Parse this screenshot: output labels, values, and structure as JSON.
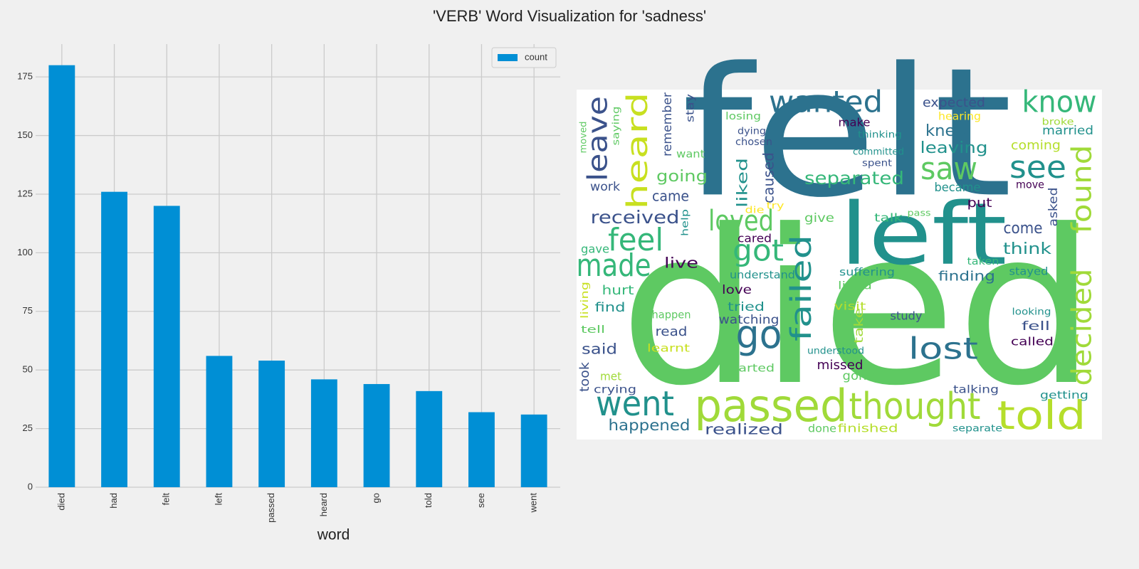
{
  "title": "'VERB' Word Visualization for 'sadness'",
  "chart_data": [
    {
      "type": "bar",
      "xlabel": "word",
      "categories": [
        "died",
        "had",
        "felt",
        "left",
        "passed",
        "heard",
        "go",
        "told",
        "see",
        "went"
      ],
      "series": [
        {
          "name": "count",
          "color": "#008fd5",
          "values": [
            180,
            126,
            120,
            56,
            54,
            46,
            44,
            41,
            32,
            31
          ]
        }
      ],
      "ylim": [
        0,
        189
      ],
      "yticks": [
        0,
        25,
        50,
        75,
        100,
        125,
        150,
        175
      ],
      "grid": true,
      "legend": "upper right"
    },
    {
      "type": "wordcloud",
      "words": [
        "died",
        "felt",
        "left",
        "passed",
        "thought",
        "told",
        "went",
        "made",
        "feel",
        "go",
        "got",
        "lost",
        "loved",
        "wanted",
        "know",
        "saw",
        "see",
        "separated",
        "found",
        "decided",
        "failed",
        "heard",
        "leave",
        "received",
        "going",
        "came",
        "work",
        "remember",
        "stay",
        "saying",
        "moved",
        "want",
        "losing",
        "dying",
        "chosen",
        "make",
        "thinking",
        "committed",
        "spent",
        "expected",
        "hearing",
        "knew",
        "leaving",
        "became",
        "coming",
        "married",
        "broke",
        "move",
        "asked",
        "put",
        "liked",
        "caused",
        "die",
        "try",
        "pass",
        "talk",
        "give",
        "help",
        "cared",
        "come",
        "think",
        "gave",
        "live",
        "understand",
        "suffering",
        "finding",
        "stayed",
        "taken",
        "living",
        "hurt",
        "love",
        "lived",
        "find",
        "tried",
        "visit",
        "take",
        "happen",
        "watching",
        "study",
        "looking",
        "fell",
        "tell",
        "read",
        "called",
        "learnt",
        "said",
        "understood",
        "took",
        "met",
        "started",
        "missed",
        "gone",
        "crying",
        "talking",
        "getting",
        "happened",
        "realized",
        "done",
        "finished",
        "separate"
      ],
      "colors": [
        "#5ec962",
        "#2c728e",
        "#21918c",
        "#a0da39",
        "#a0da39",
        "#b5de2b",
        "#21918c",
        "#35b779",
        "#35b779",
        "#2c728e",
        "#35b779",
        "#2c728e",
        "#5ec962",
        "#2c728e",
        "#35b779",
        "#5ec962",
        "#21918c",
        "#35b779",
        "#a0da39",
        "#a0da39",
        "#21918c",
        "#c8e020",
        "#3b528b",
        "#3b528b",
        "#5ec962",
        "#3b528b",
        "#3b528b",
        "#3b528b",
        "#3b528b",
        "#5ec962",
        "#5ec962",
        "#5ec962",
        "#5ec962",
        "#3b528b",
        "#3b528b",
        "#440154",
        "#21918c",
        "#21918c",
        "#3b528b",
        "#3b528b",
        "#fde725",
        "#2c728e",
        "#21918c",
        "#21918c",
        "#b5de2b",
        "#21918c",
        "#a0da39",
        "#440154",
        "#3b528b",
        "#440154",
        "#21918c",
        "#3b528b",
        "#fde725",
        "#fde725",
        "#5ec962",
        "#35b779",
        "#5ec962",
        "#21918c",
        "#440154",
        "#3b528b",
        "#21918c",
        "#35b779",
        "#440154",
        "#21918c",
        "#21918c",
        "#2c728e",
        "#21918c",
        "#35b779",
        "#c8e020",
        "#35b779",
        "#440154",
        "#5ec962",
        "#21918c",
        "#21918c",
        "#b5de2b",
        "#a0da39",
        "#5ec962",
        "#3b528b",
        "#3b528b",
        "#21918c",
        "#3b528b",
        "#5ec962",
        "#3b528b",
        "#440154",
        "#c8e020",
        "#3b528b",
        "#21918c",
        "#3b528b",
        "#a0da39",
        "#5ec962",
        "#440154",
        "#5ec962",
        "#3b528b",
        "#3b528b",
        "#21918c",
        "#2c728e",
        "#3b528b",
        "#5ec962",
        "#b5de2b",
        "#21918c"
      ],
      "background": "#ffffff"
    }
  ]
}
